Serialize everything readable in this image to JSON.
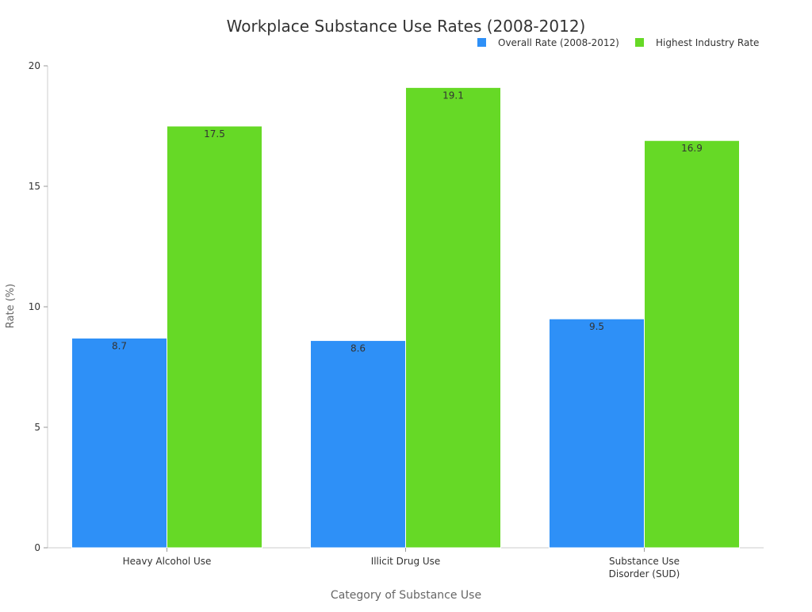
{
  "colors": {
    "overall": "#2e90f7",
    "highest": "#66d926",
    "axis": "#cccccc",
    "text": "#333333",
    "label_text": "#666666"
  },
  "chart_data": {
    "type": "bar",
    "title": "Workplace Substance Use Rates (2008-2012)",
    "xlabel": "Category of Substance Use",
    "ylabel": "Rate (%)",
    "ylim": [
      0,
      20
    ],
    "yticks": [
      0,
      5,
      10,
      15,
      20
    ],
    "grid": false,
    "legend_position": "top-right",
    "categories": [
      [
        "Heavy Alcohol Use"
      ],
      [
        "Illicit Drug Use"
      ],
      [
        "Substance Use",
        "Disorder (SUD)"
      ]
    ],
    "series": [
      {
        "name": "Overall Rate (2008-2012)",
        "values": [
          8.7,
          8.6,
          9.5
        ]
      },
      {
        "name": "Highest Industry Rate",
        "values": [
          17.5,
          19.1,
          16.9
        ]
      }
    ]
  }
}
